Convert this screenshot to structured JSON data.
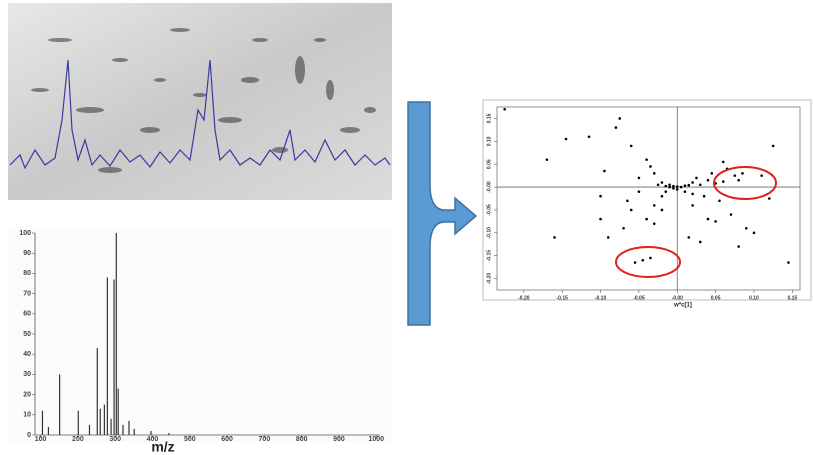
{
  "chart_data": [
    {
      "type": "stick",
      "xlabel": "m/z",
      "x": [
        105,
        121,
        151,
        201,
        231,
        252,
        260,
        271,
        279,
        289,
        297,
        303,
        308,
        321,
        337,
        351,
        396,
        444
      ],
      "values": [
        12,
        4,
        30,
        12,
        5,
        43,
        13,
        15,
        78,
        8,
        77,
        100,
        23,
        5,
        7,
        3,
        2,
        1
      ],
      "color": "#333333",
      "xlim": [
        85,
        1010
      ],
      "ylim": [
        0,
        100
      ],
      "xticks": [
        100,
        200,
        300,
        400,
        500,
        600,
        700,
        800,
        900,
        1000
      ],
      "yticks": [
        0,
        10,
        20,
        30,
        40,
        50,
        60,
        70,
        80,
        90,
        100
      ]
    },
    {
      "type": "scatter",
      "xlabel": "w*c[1]",
      "x": [
        -0.225,
        -0.17,
        -0.145,
        -0.16,
        -0.115,
        -0.1,
        -0.095,
        -0.075,
        -0.07,
        -0.06,
        -0.055,
        -0.05,
        -0.045,
        -0.04,
        -0.035,
        -0.03,
        -0.03,
        -0.025,
        -0.02,
        -0.02,
        -0.015,
        -0.015,
        -0.01,
        -0.01,
        -0.005,
        -0.005,
        0,
        0,
        0.005,
        0.01,
        0.01,
        0.015,
        0.02,
        0.02,
        0.025,
        0.03,
        0.035,
        0.04,
        0.045,
        0.05,
        0.055,
        0.06,
        0.065,
        0.07,
        0.075,
        0.08,
        0.085,
        0.09,
        0.1,
        0.11,
        0.125,
        0.145,
        -0.08,
        -0.06,
        -0.04,
        -0.03,
        -0.02,
        0.02,
        0.04,
        0.06,
        -0.065,
        -0.05,
        -0.035,
        0.015,
        0.03,
        0.05,
        0.08,
        -0.1,
        -0.09,
        0.12
      ],
      "y": [
        0.17,
        0.06,
        0.105,
        -0.11,
        0.11,
        -0.02,
        0.035,
        0.15,
        -0.09,
        -0.05,
        -0.165,
        0.02,
        -0.16,
        -0.07,
        -0.155,
        0.03,
        -0.04,
        0.005,
        -0.02,
        0.01,
        0.002,
        -0.01,
        0,
        0.005,
        -0.003,
        0.002,
        0.001,
        -0.005,
        0,
        0.003,
        -0.01,
        0.004,
        0.01,
        -0.015,
        0.02,
        0.005,
        -0.02,
        0.015,
        0.03,
        0.008,
        -0.03,
        0.012,
        0.04,
        -0.06,
        0.025,
        0.015,
        0.03,
        -0.09,
        -0.1,
        0.025,
        0.09,
        -0.165,
        0.13,
        0.09,
        0.06,
        -0.08,
        -0.05,
        -0.04,
        -0.07,
        0.055,
        -0.03,
        -0.01,
        0.045,
        -0.11,
        -0.12,
        -0.075,
        -0.13,
        -0.07,
        -0.11,
        -0.025
      ],
      "color": "#000000",
      "xlim": [
        -0.235,
        0.16
      ],
      "ylim": [
        -0.225,
        0.175
      ],
      "xticks": [
        {
          "value": -0.2,
          "label": "-0.20"
        },
        {
          "value": -0.15,
          "label": "-0.15"
        },
        {
          "value": -0.1,
          "label": "-0.10"
        },
        {
          "value": -0.05,
          "label": "-0.05"
        },
        {
          "value": 0,
          "label": "-0.00"
        },
        {
          "value": 0.05,
          "label": "0.05"
        },
        {
          "value": 0.1,
          "label": "0.10"
        },
        {
          "value": 0.15,
          "label": "0.15"
        }
      ],
      "yticks": [
        {
          "value": -0.2,
          "label": "-0.20"
        },
        {
          "value": -0.15,
          "label": "-0.15"
        },
        {
          "value": -0.1,
          "label": "-0.10"
        },
        {
          "value": -0.05,
          "label": "-0.05"
        },
        {
          "value": 0,
          "label": "-0.00"
        },
        {
          "value": 0.05,
          "label": "0.05"
        },
        {
          "value": 0.1,
          "label": "0.10"
        },
        {
          "value": 0.15,
          "label": "0.15"
        }
      ]
    }
  ]
}
